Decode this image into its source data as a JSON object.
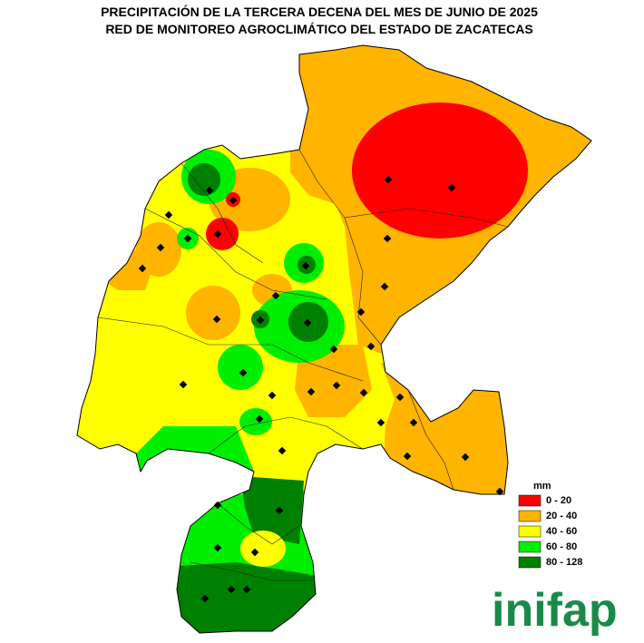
{
  "title": [
    "PRECIPITACIÓN DE LA TERCERA DECENA DEL MES DE JUNIO DE 2025",
    "RED DE MONITOREO AGROCLIMÁTICO DEL ESTADO DE ZACATECAS"
  ],
  "legend": {
    "title": "mm",
    "items": [
      {
        "label": "0 - 20",
        "color": "#ff0000"
      },
      {
        "label": "20 - 40",
        "color": "#ffb400"
      },
      {
        "label": "40 - 60",
        "color": "#ffff00"
      },
      {
        "label": "60 - 80",
        "color": "#00ee00"
      },
      {
        "label": "80 - 128",
        "color": "#008000"
      }
    ]
  },
  "logo": "inifap"
}
